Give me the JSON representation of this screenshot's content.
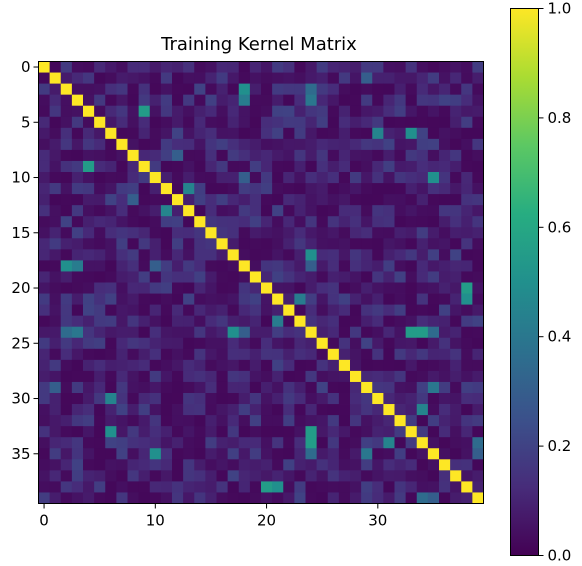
{
  "chart_data": {
    "type": "heatmap",
    "title": "Training Kernel Matrix",
    "size": 40,
    "x_ticks": [
      0,
      10,
      20,
      30
    ],
    "y_ticks": [
      0,
      5,
      10,
      15,
      20,
      25,
      30,
      35
    ],
    "colorbar": {
      "colormap": "viridis",
      "range": [
        0.0,
        1.0
      ],
      "ticks": [
        "0.0",
        "0.2",
        "0.4",
        "0.6",
        "0.8",
        "1.0"
      ]
    },
    "diagonal_value": 1.0,
    "background_value": 0.05,
    "highlights": [
      {
        "row": 2,
        "col": 18,
        "value": 0.5
      },
      {
        "row": 3,
        "col": 24,
        "value": 0.32
      },
      {
        "row": 4,
        "col": 9,
        "value": 0.45
      },
      {
        "row": 6,
        "col": 33,
        "value": 0.55
      },
      {
        "row": 9,
        "col": 4,
        "value": 0.55
      },
      {
        "row": 10,
        "col": 35,
        "value": 0.5
      },
      {
        "row": 12,
        "col": 8,
        "value": 0.3
      },
      {
        "row": 13,
        "col": 11,
        "value": 0.45
      },
      {
        "row": 18,
        "col": 2,
        "value": 0.5
      },
      {
        "row": 18,
        "col": 3,
        "value": 0.42
      },
      {
        "row": 18,
        "col": 10,
        "value": 0.3
      },
      {
        "row": 18,
        "col": 24,
        "value": 0.3
      },
      {
        "row": 21,
        "col": 38,
        "value": 0.5
      },
      {
        "row": 23,
        "col": 21,
        "value": 0.42
      },
      {
        "row": 24,
        "col": 2,
        "value": 0.35
      },
      {
        "row": 24,
        "col": 3,
        "value": 0.4
      },
      {
        "row": 24,
        "col": 17,
        "value": 0.5
      },
      {
        "row": 24,
        "col": 33,
        "value": 0.55
      },
      {
        "row": 24,
        "col": 35,
        "value": 0.35
      },
      {
        "row": 29,
        "col": 1,
        "value": 0.3
      },
      {
        "row": 30,
        "col": 6,
        "value": 0.45
      },
      {
        "row": 31,
        "col": 34,
        "value": 0.45
      },
      {
        "row": 33,
        "col": 6,
        "value": 0.5
      },
      {
        "row": 34,
        "col": 24,
        "value": 0.55
      },
      {
        "row": 35,
        "col": 29,
        "value": 0.4
      },
      {
        "row": 38,
        "col": 20,
        "value": 0.55
      },
      {
        "row": 39,
        "col": 34,
        "value": 0.35
      },
      {
        "row": 39,
        "col": 35,
        "value": 0.3
      }
    ]
  }
}
